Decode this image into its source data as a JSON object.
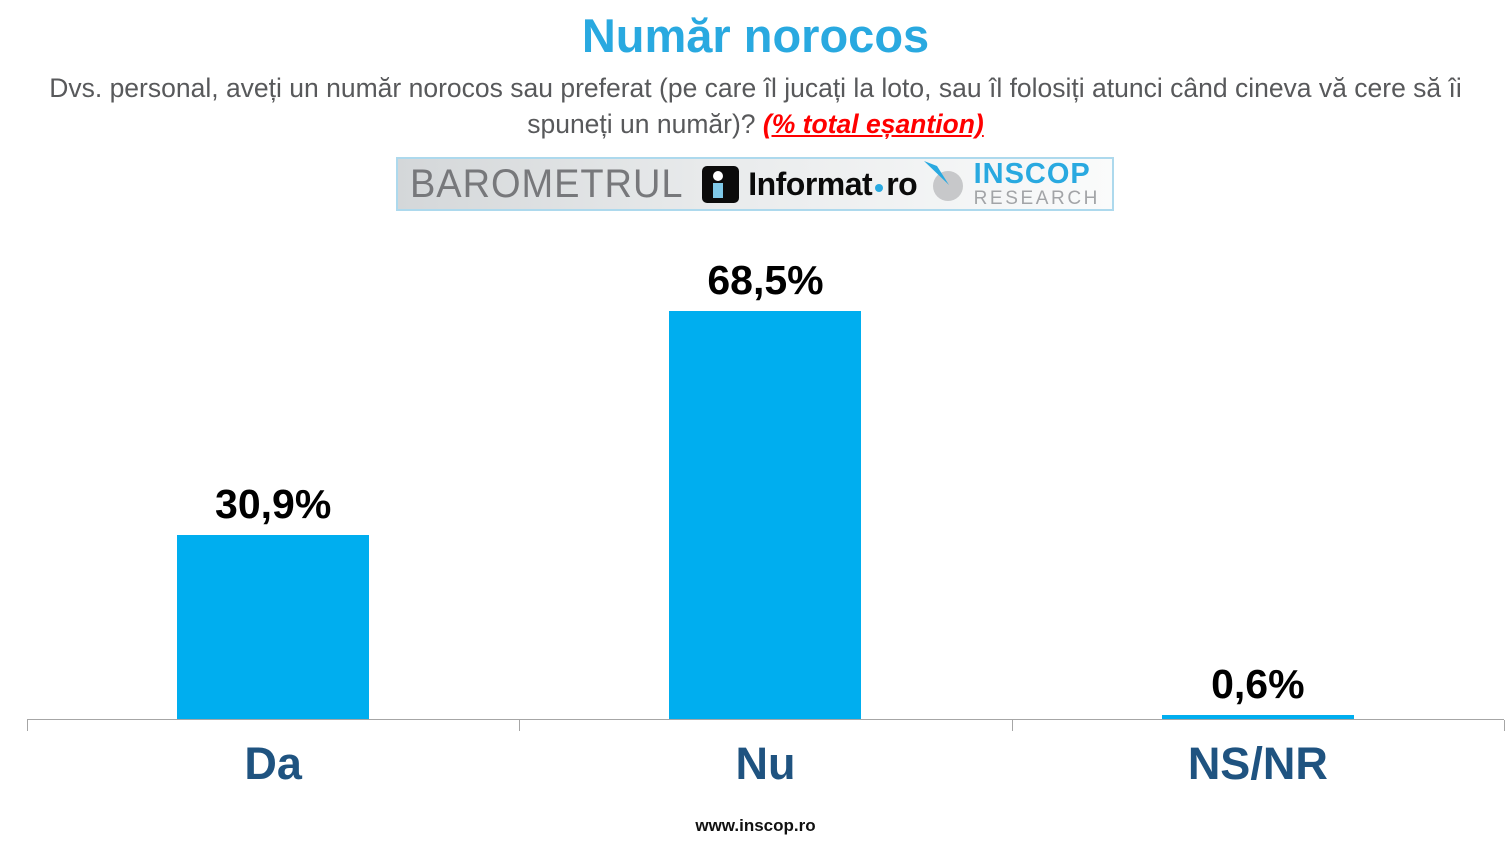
{
  "title": "Număr norocos",
  "subtitle": {
    "text": "Dvs. personal, aveți un număr norocos sau preferat (pe care îl jucați la loto, sau îl folosiți atunci când cineva vă cere să îi spuneți un număr)? ",
    "highlight": "(% total eșantion)"
  },
  "logos": {
    "barometrul": "BAROMETRUL",
    "informat_name": "Informat",
    "informat_tld": "ro",
    "inscop_line1": "INSCOP",
    "inscop_line2": "RESEARCH"
  },
  "chart_data": {
    "type": "bar",
    "categories": [
      "Da",
      "Nu",
      "NS/NR"
    ],
    "values": [
      30.9,
      68.5,
      0.6
    ],
    "value_labels": [
      "30,9%",
      "68,5%",
      "0,6%"
    ],
    "title": "Număr norocos",
    "xlabel": "",
    "ylabel": "",
    "ylim": [
      0,
      100
    ],
    "grid": false,
    "legend": false,
    "bar_color": "#00AEEF",
    "category_label_color": "#1F5380",
    "value_label_color": "#000000",
    "axis_color": "#A6A6A6"
  },
  "colors": {
    "title_blue": "#29A9E0",
    "subtitle_gray": "#58595B",
    "highlight_red": "#FF0000",
    "logo_border_blue": "#ADD9ED",
    "barometrul_gray": "#77787B",
    "inscop_blue": "#29A9E0",
    "inscop_gray": "#A2A4A7"
  },
  "footer": "www.inscop.ro"
}
